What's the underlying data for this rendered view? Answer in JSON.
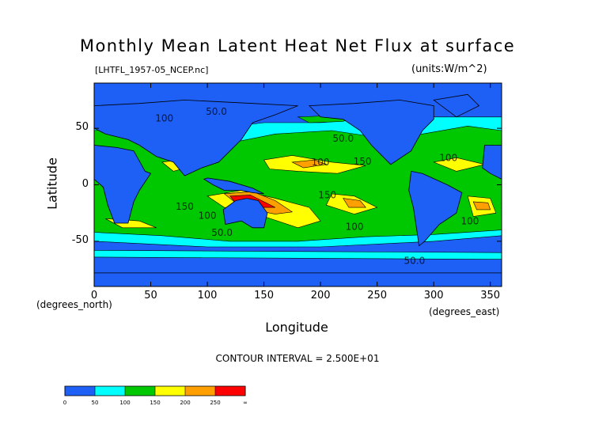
{
  "header": {
    "title": "Monthly Mean Latent Heat Net Flux at surface",
    "filename": "[LHTFL_1957-05_NCEP.nc]",
    "units": "(units:W/m^2)"
  },
  "footer": {
    "contour_interval": "CONTOUR INTERVAL = 2.500E+01"
  },
  "chart_data": {
    "type": "heatmap",
    "title": "Monthly Mean Latent Heat Net Flux at surface",
    "xlabel": "Longitude",
    "ylabel": "Latitude",
    "x_units_label": "(degrees_east)",
    "y_units_label": "(degrees_north)",
    "xlim": [
      0,
      360
    ],
    "ylim": [
      -90,
      90
    ],
    "x_ticks": [
      0,
      50,
      100,
      150,
      200,
      250,
      300,
      350
    ],
    "y_ticks": [
      -50,
      0,
      50
    ],
    "colorbar": {
      "levels": [
        "0",
        "50",
        "100",
        "150",
        "200",
        "250",
        "∞"
      ],
      "colors": [
        "#1e5ff5",
        "#1e5ff5",
        "#00ffff",
        "#00ffff",
        "#00c800",
        "#00c800",
        "#ffff00",
        "#ffff00",
        "#ffa000",
        "#ffa000",
        "#ff0000",
        "#ff0000"
      ]
    },
    "contour_labels": [
      {
        "text": "50.0",
        "x": 108,
        "y": 62
      },
      {
        "text": "100",
        "x": 62,
        "y": 56
      },
      {
        "text": "50.0",
        "x": 220,
        "y": 38
      },
      {
        "text": "100",
        "x": 200,
        "y": 17
      },
      {
        "text": "150",
        "x": 237,
        "y": 18
      },
      {
        "text": "100",
        "x": 313,
        "y": 21
      },
      {
        "text": "150",
        "x": 80,
        "y": -22
      },
      {
        "text": "100",
        "x": 100,
        "y": -30
      },
      {
        "text": "50.0",
        "x": 113,
        "y": -45
      },
      {
        "text": "150",
        "x": 206,
        "y": -12
      },
      {
        "text": "100",
        "x": 230,
        "y": -40
      },
      {
        "text": "100",
        "x": 332,
        "y": -35
      },
      {
        "text": "50.0",
        "x": 283,
        "y": -70
      }
    ]
  }
}
